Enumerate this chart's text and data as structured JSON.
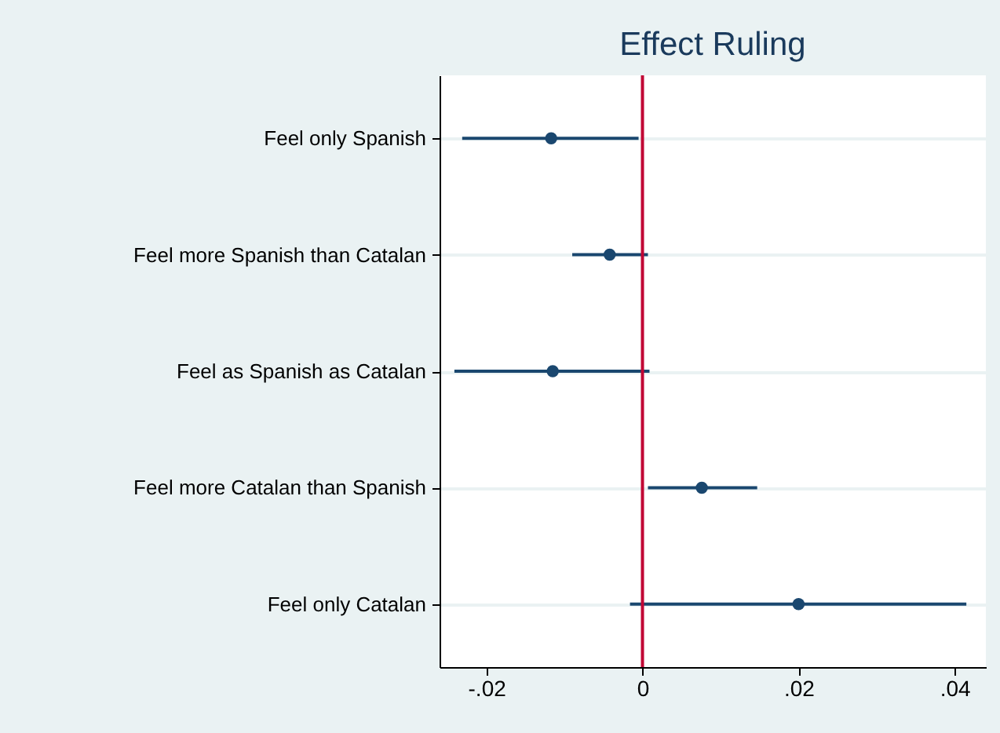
{
  "chart_data": {
    "type": "scatter",
    "orientation": "horizontal",
    "title": "Effect Ruling",
    "categories": [
      "Feel only Spanish",
      "Feel more Spanish than Catalan",
      "Feel as Spanish as Catalan",
      "Feel more Catalan than Spanish",
      "Feel only Catalan"
    ],
    "series": [
      {
        "color": "#1a476f",
        "values": [
          -0.0117,
          -0.0042,
          -0.0115,
          0.0076,
          0.02
        ],
        "errors": [
          [
            -0.0231,
            -0.0005
          ],
          [
            -0.009,
            0.0007
          ],
          [
            -0.0241,
            0.0009
          ],
          [
            0.0007,
            0.0147
          ],
          [
            -0.0016,
            0.0415
          ]
        ]
      }
    ],
    "xlim": [
      -0.026,
      0.044
    ],
    "xticks": [
      {
        "value": -0.02,
        "label": "-.02"
      },
      {
        "value": 0,
        "label": "0"
      },
      {
        "value": 0.02,
        "label": ".02"
      },
      {
        "value": 0.04,
        "label": ".04"
      }
    ],
    "ref_lines": [
      {
        "axis": "x",
        "value": 0,
        "color": "#c10534"
      }
    ],
    "grid": "y",
    "marker": "circle"
  }
}
